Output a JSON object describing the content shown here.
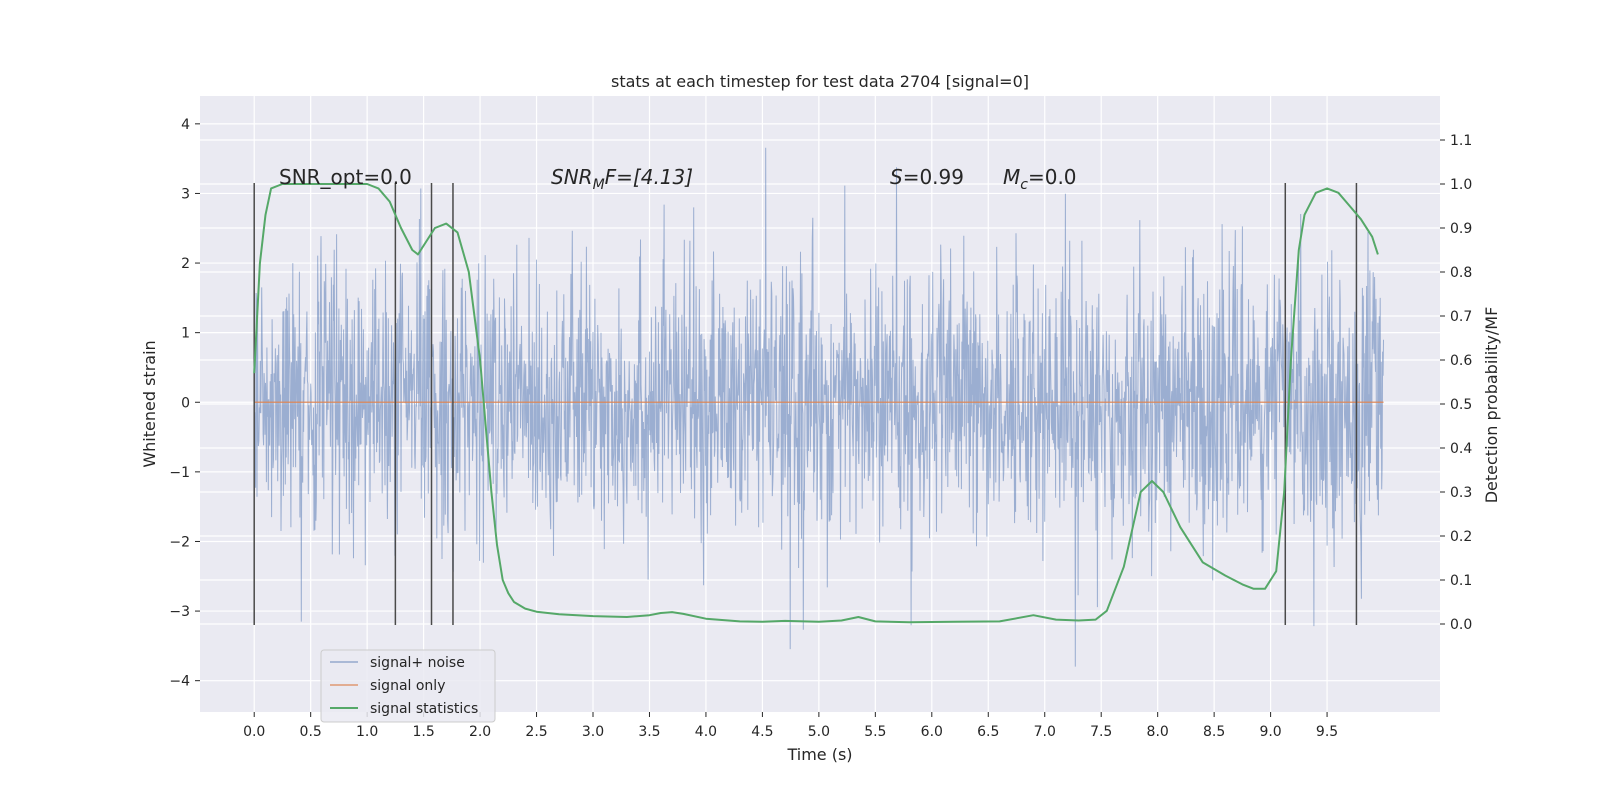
{
  "chart_data": {
    "type": "line",
    "title": "stats at each timestep for test data 2704 [signal=0]",
    "xlabel": "Time (s)",
    "ylabel": "Whitened strain",
    "y2label": "Detection probability/MF",
    "xlim": [
      -0.48,
      10.5
    ],
    "ylim": [
      -4.45,
      4.4
    ],
    "y2lim": [
      -0.2,
      1.2
    ],
    "grid": true,
    "legend_position": "lower-left",
    "x_ticks": [
      0.0,
      0.5,
      1.0,
      1.5,
      2.0,
      2.5,
      3.0,
      3.5,
      4.0,
      4.5,
      5.0,
      5.5,
      6.0,
      6.5,
      7.0,
      7.5,
      8.0,
      8.5,
      9.0,
      9.5
    ],
    "x_tick_labels": [
      "0.0",
      "0.5",
      "1.0",
      "1.5",
      "2.0",
      "2.5",
      "3.0",
      "3.5",
      "4.0",
      "4.5",
      "5.0",
      "5.5",
      "6.0",
      "6.5",
      "7.0",
      "7.5",
      "8.0",
      "8.5",
      "9.0",
      "9.5"
    ],
    "y_ticks": [
      4,
      3,
      2,
      1,
      0,
      -1,
      -2,
      -3,
      -4
    ],
    "y_tick_labels": [
      "4",
      "3",
      "2",
      "1",
      "0",
      "−1",
      "−2",
      "−3",
      "−4"
    ],
    "y2_ticks": [
      1.1,
      1.0,
      0.9,
      0.8,
      0.7,
      0.6,
      0.5,
      0.4,
      0.3,
      0.2,
      0.1,
      0.0
    ],
    "y2_tick_labels": [
      "1.1",
      "1.0",
      "0.9",
      "0.8",
      "0.7",
      "0.6",
      "0.5",
      "0.4",
      "0.3",
      "0.2",
      "0.1",
      "0.0"
    ],
    "annotations": {
      "snr_opt": "SNR_opt=0.0",
      "snr_mf_name": "SNR",
      "snr_mf_sub": "M",
      "snr_mf_rest": "F=[4.13]",
      "s_name": "S",
      "s_rest": "=0.99",
      "mc_name": "M",
      "mc_sub": "c",
      "mc_rest": "=0.0"
    },
    "series": [
      {
        "name": "signal+ noise",
        "color": "#4c72b0",
        "axis": "left",
        "x_range": [
          0.0,
          10.0
        ],
        "envelope_typical": 1.9,
        "envelope_min": -4.1,
        "envelope_max": 4.0
      },
      {
        "name": "signal only",
        "color": "#dd8452",
        "axis": "left",
        "x": [
          0.0,
          10.0
        ],
        "y": [
          0.0,
          0.0
        ]
      },
      {
        "name": "signal statistics",
        "color": "#55a868",
        "axis": "right",
        "x": [
          0.0,
          0.05,
          0.1,
          0.15,
          0.25,
          0.4,
          0.6,
          0.8,
          1.0,
          1.1,
          1.2,
          1.3,
          1.4,
          1.45,
          1.5,
          1.6,
          1.7,
          1.8,
          1.9,
          2.0,
          2.05,
          2.1,
          2.15,
          2.2,
          2.25,
          2.3,
          2.4,
          2.5,
          2.7,
          3.0,
          3.3,
          3.5,
          3.6,
          3.7,
          3.8,
          4.0,
          4.3,
          4.5,
          4.7,
          5.0,
          5.2,
          5.35,
          5.5,
          5.8,
          6.2,
          6.6,
          6.9,
          7.1,
          7.3,
          7.45,
          7.55,
          7.7,
          7.85,
          7.95,
          8.05,
          8.2,
          8.4,
          8.6,
          8.75,
          8.85,
          8.95,
          9.05,
          9.12,
          9.18,
          9.25,
          9.3,
          9.4,
          9.5,
          9.6,
          9.7,
          9.8,
          9.9,
          9.95
        ],
        "y": [
          0.57,
          0.82,
          0.93,
          0.99,
          1.0,
          1.0,
          1.0,
          1.0,
          1.0,
          0.99,
          0.96,
          0.9,
          0.85,
          0.84,
          0.86,
          0.9,
          0.91,
          0.89,
          0.8,
          0.6,
          0.45,
          0.3,
          0.18,
          0.1,
          0.07,
          0.05,
          0.035,
          0.028,
          0.022,
          0.018,
          0.016,
          0.02,
          0.025,
          0.027,
          0.023,
          0.012,
          0.006,
          0.005,
          0.007,
          0.005,
          0.008,
          0.016,
          0.006,
          0.004,
          0.005,
          0.006,
          0.02,
          0.01,
          0.008,
          0.01,
          0.03,
          0.13,
          0.3,
          0.325,
          0.3,
          0.22,
          0.14,
          0.11,
          0.09,
          0.08,
          0.08,
          0.12,
          0.3,
          0.6,
          0.85,
          0.93,
          0.98,
          0.99,
          0.98,
          0.95,
          0.92,
          0.88,
          0.84
        ]
      }
    ],
    "vertical_markers": [
      0.0,
      1.25,
      1.57,
      1.76,
      9.13,
      9.76
    ]
  }
}
